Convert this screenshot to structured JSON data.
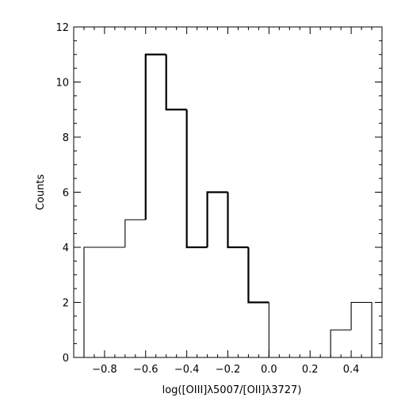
{
  "chart_data": {
    "type": "bar",
    "style": "step-histogram",
    "title": "",
    "xlabel": "log([OIII]λ5007/[OII]λ3727)",
    "ylabel": "Counts",
    "xlim": [
      -0.95,
      0.55
    ],
    "ylim": [
      0,
      12
    ],
    "x_ticks": [
      -0.8,
      -0.6,
      -0.4,
      -0.2,
      0.0,
      0.2,
      0.4
    ],
    "x_tick_labels": [
      "−0.8",
      "−0.6",
      "−0.4",
      "−0.2",
      "0.0",
      "0.2",
      "0.4"
    ],
    "y_ticks": [
      0,
      2,
      4,
      6,
      8,
      10,
      12
    ],
    "y_tick_labels": [
      "0",
      "2",
      "4",
      "6",
      "8",
      "10",
      "12"
    ],
    "bin_edges": [
      -0.9,
      -0.7,
      -0.6,
      -0.5,
      -0.4,
      -0.3,
      -0.2,
      -0.1,
      0.0,
      0.1,
      0.2,
      0.3,
      0.4,
      0.5
    ],
    "counts": [
      4,
      5,
      11,
      9,
      4,
      6,
      4,
      2,
      0,
      0,
      0,
      1,
      2
    ],
    "line_widths": [
      "thin",
      "thin",
      "thick",
      "thick",
      "thick",
      "thick",
      "thick",
      "thick",
      "thin",
      "thin",
      "thin",
      "thin",
      "thin"
    ],
    "grid": false,
    "legend": "none"
  }
}
